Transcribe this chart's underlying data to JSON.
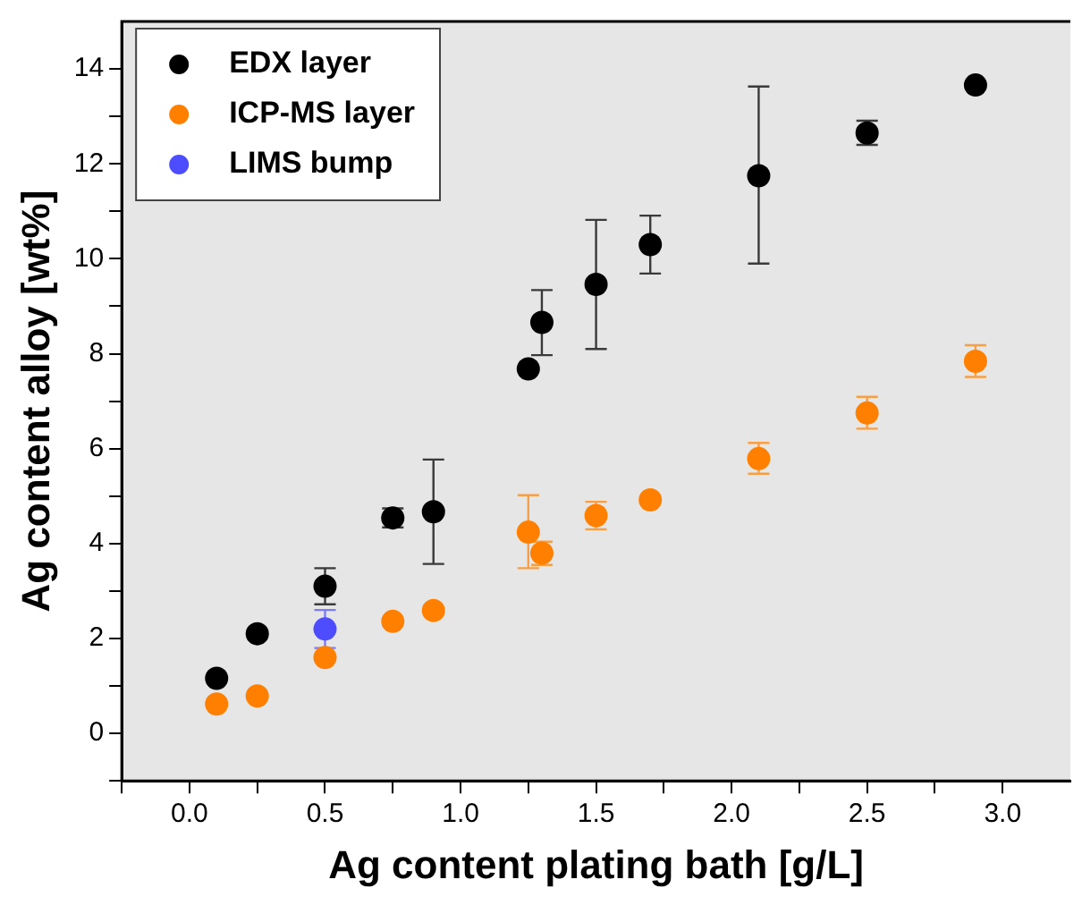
{
  "chart_data": {
    "type": "scatter",
    "xlabel": "Ag content plating bath [g/L]",
    "ylabel": "Ag content alloy [wt%]",
    "xlim": [
      -0.25,
      3.25
    ],
    "ylim": [
      -1,
      15
    ],
    "xticks": [
      {
        "value": -0.25,
        "label": null
      },
      {
        "value": 0,
        "label": "0.0"
      },
      {
        "value": 0.25,
        "label": null
      },
      0.5,
      {
        "value": 0.75,
        "label": null
      },
      {
        "value": 1,
        "label": "1.0"
      },
      {
        "value": 1.25,
        "label": null
      },
      1.5,
      {
        "value": 1.75,
        "label": null
      },
      {
        "value": 2,
        "label": "2.0"
      },
      {
        "value": 2.25,
        "label": null
      },
      2.5,
      {
        "value": 2.75,
        "label": null
      },
      {
        "value": 3,
        "label": "3.0"
      }
    ],
    "yticks": [
      {
        "value": -1,
        "label": null
      },
      0,
      {
        "value": 1,
        "label": null
      },
      2,
      {
        "value": 3,
        "label": null
      },
      4,
      {
        "value": 5,
        "label": null
      },
      6,
      {
        "value": 7,
        "label": null
      },
      8,
      {
        "value": 9,
        "label": null
      },
      10,
      {
        "value": 11,
        "label": null
      },
      12,
      {
        "value": 13,
        "label": null
      },
      14
    ],
    "grid": false,
    "legend": "top left",
    "marker": "circle",
    "series": [
      {
        "name": "EDX layer",
        "color": "#000000",
        "x": [
          0.1,
          0.25,
          0.5,
          0.75,
          0.9,
          1.25,
          1.3,
          1.5,
          1.7,
          2.1,
          2.5,
          2.9
        ],
        "values": [
          1.16,
          2.1,
          3.1,
          4.54,
          4.67,
          7.68,
          8.66,
          9.46,
          10.3,
          11.75,
          12.65,
          13.66
        ],
        "errors": [
          null,
          null,
          0.38,
          0.2,
          1.1,
          null,
          [
            7.97,
            9.34
          ],
          [
            8.1,
            10.82
          ],
          [
            9.69,
            10.91
          ],
          [
            9.9,
            13.63
          ],
          [
            12.4,
            12.91
          ],
          null
        ]
      },
      {
        "name": "ICP-MS layer",
        "color": "#ff8000",
        "x": [
          0.1,
          0.25,
          0.5,
          0.75,
          0.9,
          1.25,
          1.3,
          1.5,
          1.7,
          2.1,
          2.5,
          2.9
        ],
        "values": [
          0.62,
          0.79,
          1.6,
          2.36,
          2.59,
          4.24,
          3.8,
          4.59,
          4.92,
          5.79,
          6.75,
          7.84
        ],
        "errors": [
          null,
          null,
          null,
          null,
          null,
          [
            3.48,
            5.02
          ],
          [
            3.55,
            4.04
          ],
          [
            4.3,
            4.88
          ],
          null,
          [
            5.47,
            6.12
          ],
          [
            6.42,
            7.09
          ],
          [
            7.51,
            8.18
          ]
        ]
      },
      {
        "name": "LIMS bump",
        "color": "#4d4dff",
        "x": [
          0.5
        ],
        "values": [
          2.2
        ],
        "errors": [
          0.4
        ]
      }
    ]
  }
}
